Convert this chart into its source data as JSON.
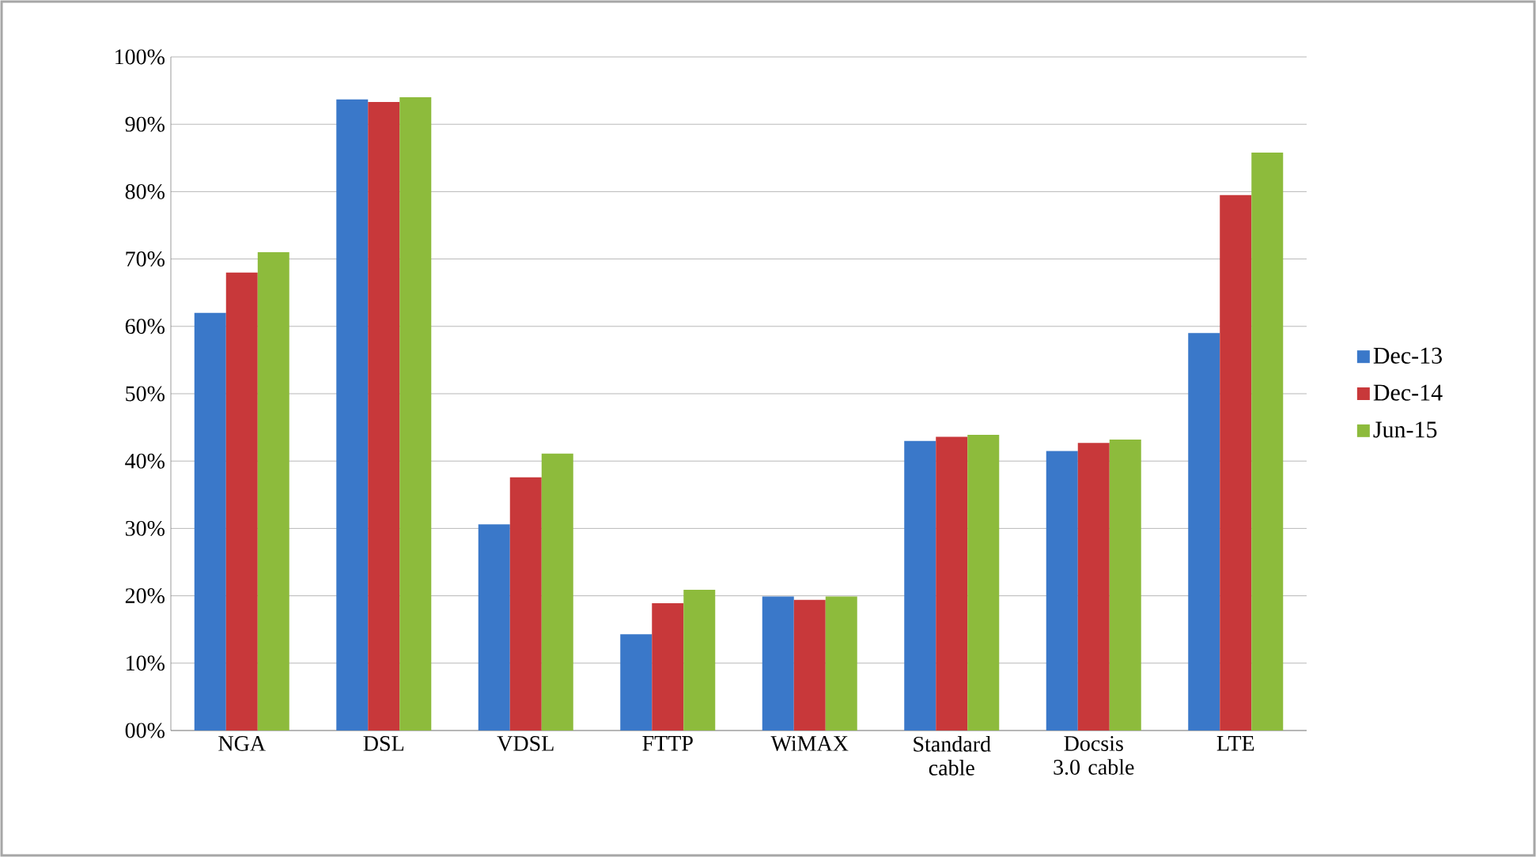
{
  "chart_data": {
    "type": "bar",
    "categories": [
      "NGA",
      "DSL",
      "VDSL",
      "FTTP",
      "WiMAX",
      "Standard cable",
      "Docsis 3.0 cable",
      "LTE"
    ],
    "series": [
      {
        "name": "Dec-13",
        "color": "#3a78c9",
        "values": [
          62,
          93.7,
          30.6,
          14.3,
          19.9,
          43.0,
          41.5,
          59.0
        ]
      },
      {
        "name": "Dec-14",
        "color": "#c8383a",
        "values": [
          68,
          93.3,
          37.6,
          18.9,
          19.4,
          43.6,
          42.7,
          79.5
        ]
      },
      {
        "name": "Jun-15",
        "color": "#8dbb3c",
        "values": [
          71,
          94.0,
          41.1,
          20.9,
          19.9,
          43.9,
          43.2,
          85.8
        ]
      }
    ],
    "ylim": [
      0,
      100
    ],
    "yticks": [
      {
        "value": 0,
        "label": "00%"
      },
      {
        "value": 10,
        "label": "10%"
      },
      {
        "value": 20,
        "label": "20%"
      },
      {
        "value": 30,
        "label": "30%"
      },
      {
        "value": 40,
        "label": "40%"
      },
      {
        "value": 50,
        "label": "50%"
      },
      {
        "value": 60,
        "label": "60%"
      },
      {
        "value": 70,
        "label": "70%"
      },
      {
        "value": 80,
        "label": "80%"
      },
      {
        "value": 90,
        "label": "90%"
      },
      {
        "value": 100,
        "label": "100%"
      }
    ],
    "grid": "y",
    "legend": "right"
  }
}
